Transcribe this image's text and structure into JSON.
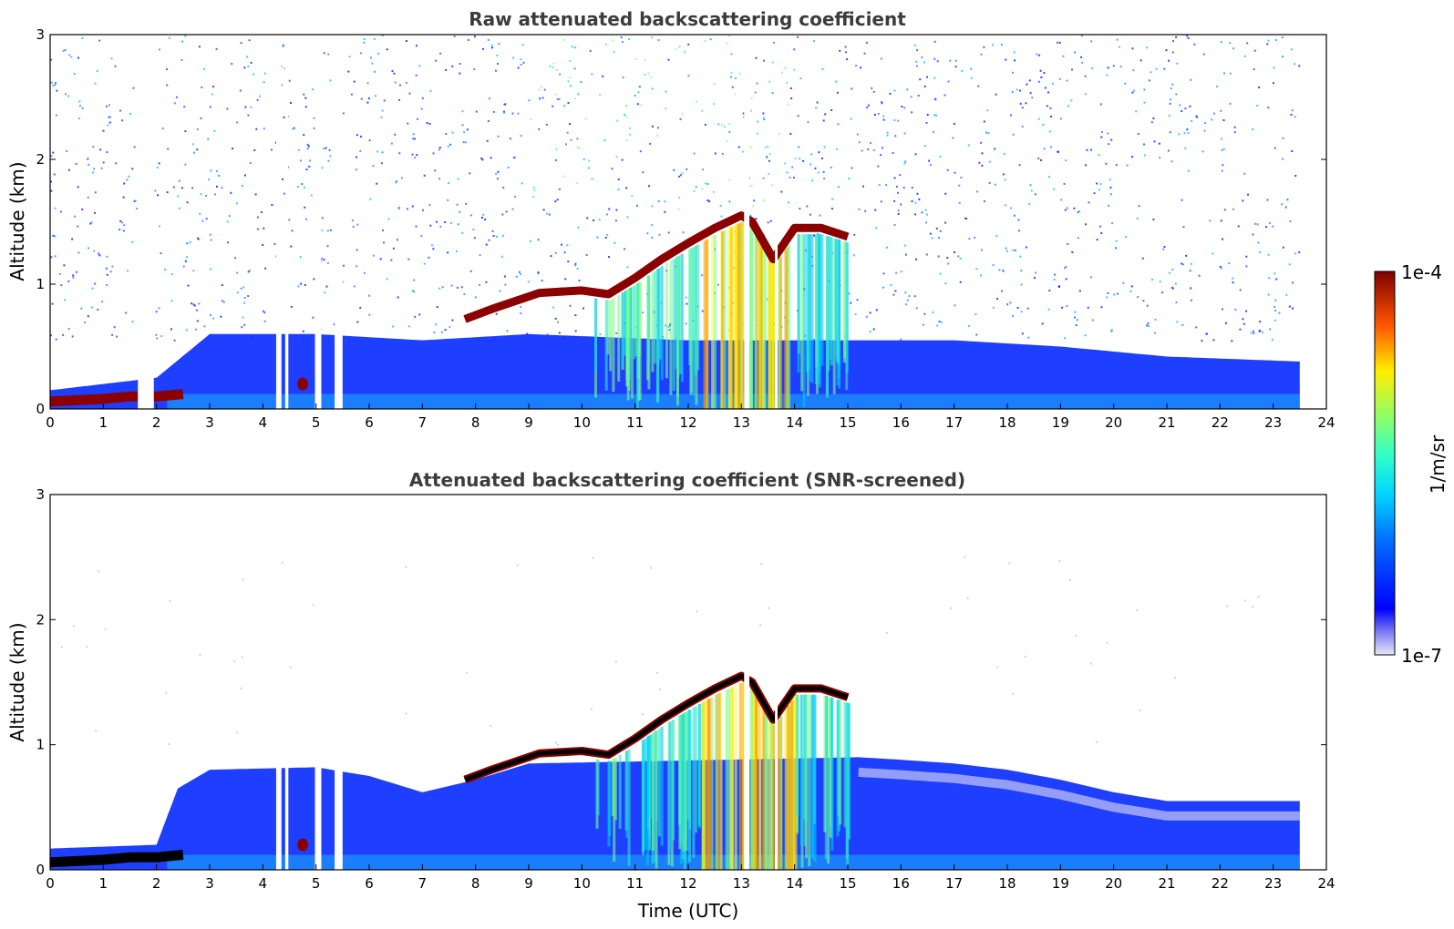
{
  "chart_data": [
    {
      "type": "heatmap",
      "title": "Raw attenuated backscattering coefficient",
      "xlabel": "",
      "ylabel": "Altitude (km)",
      "xlim": [
        0,
        24
      ],
      "ylim": [
        0,
        3
      ],
      "xticks": [
        "0",
        "1",
        "2",
        "3",
        "4",
        "5",
        "6",
        "7",
        "8",
        "9",
        "10",
        "11",
        "12",
        "13",
        "14",
        "15",
        "16",
        "17",
        "18",
        "19",
        "20",
        "21",
        "22",
        "23",
        "24"
      ],
      "yticks": [
        "0",
        "1",
        "2",
        "3"
      ],
      "data_extent_hours": 23.5,
      "screened": false,
      "features": {
        "cloud_layer_top_km": [
          [
            0.0,
            0.06
          ],
          [
            0.5,
            0.07
          ],
          [
            1.0,
            0.08
          ],
          [
            1.5,
            0.1
          ],
          [
            2.0,
            0.1
          ],
          [
            2.5,
            0.12
          ],
          [
            7.8,
            0.72
          ],
          [
            8.3,
            0.8
          ],
          [
            9.2,
            0.93
          ],
          [
            10.0,
            0.95
          ],
          [
            10.5,
            0.92
          ],
          [
            11.0,
            1.05
          ],
          [
            11.5,
            1.2
          ],
          [
            12.0,
            1.33
          ],
          [
            12.5,
            1.45
          ],
          [
            13.0,
            1.55
          ],
          [
            13.2,
            1.5
          ],
          [
            13.6,
            1.2
          ],
          [
            14.0,
            1.45
          ],
          [
            14.5,
            1.45
          ],
          [
            15.0,
            1.38
          ]
        ],
        "boundary_layer_top_km": [
          [
            0.0,
            0.15
          ],
          [
            2.0,
            0.25
          ],
          [
            3.0,
            0.6
          ],
          [
            5.0,
            0.6
          ],
          [
            7.0,
            0.55
          ],
          [
            9.0,
            0.6
          ],
          [
            12.0,
            0.55
          ],
          [
            15.0,
            0.55
          ],
          [
            17.0,
            0.55
          ],
          [
            19.0,
            0.5
          ],
          [
            21.0,
            0.42
          ],
          [
            23.5,
            0.38
          ]
        ],
        "data_gaps_hours": [
          [
            1.65,
            1.95
          ],
          [
            4.25,
            4.35
          ],
          [
            4.42,
            4.48
          ],
          [
            4.98,
            5.1
          ],
          [
            5.35,
            5.5
          ],
          [
            13.05,
            13.15
          ],
          [
            13.63,
            13.68
          ]
        ]
      }
    },
    {
      "type": "heatmap",
      "title": "Attenuated backscattering coefficient (SNR-screened)",
      "xlabel": "Time (UTC)",
      "ylabel": "Altitude (km)",
      "xlim": [
        0,
        24
      ],
      "ylim": [
        0,
        3
      ],
      "xticks": [
        "0",
        "1",
        "2",
        "3",
        "4",
        "5",
        "6",
        "7",
        "8",
        "9",
        "10",
        "11",
        "12",
        "13",
        "14",
        "15",
        "16",
        "17",
        "18",
        "19",
        "20",
        "21",
        "22",
        "23",
        "24"
      ],
      "yticks": [
        "0",
        "1",
        "2",
        "3"
      ],
      "data_extent_hours": 23.5,
      "screened": true,
      "features": {
        "cloud_layer_top_km": [
          [
            0.0,
            0.06
          ],
          [
            0.5,
            0.07
          ],
          [
            1.0,
            0.08
          ],
          [
            1.5,
            0.1
          ],
          [
            2.0,
            0.1
          ],
          [
            2.5,
            0.12
          ],
          [
            7.8,
            0.72
          ],
          [
            8.3,
            0.8
          ],
          [
            9.2,
            0.93
          ],
          [
            10.0,
            0.95
          ],
          [
            10.5,
            0.92
          ],
          [
            11.0,
            1.05
          ],
          [
            11.5,
            1.2
          ],
          [
            12.0,
            1.33
          ],
          [
            12.5,
            1.45
          ],
          [
            13.0,
            1.55
          ],
          [
            13.2,
            1.5
          ],
          [
            13.6,
            1.2
          ],
          [
            14.0,
            1.45
          ],
          [
            14.5,
            1.45
          ],
          [
            15.0,
            1.38
          ]
        ],
        "signal_top_km": [
          [
            0.0,
            0.17
          ],
          [
            2.0,
            0.2
          ],
          [
            2.4,
            0.65
          ],
          [
            3.0,
            0.8
          ],
          [
            5.0,
            0.82
          ],
          [
            6.0,
            0.75
          ],
          [
            7.0,
            0.62
          ],
          [
            8.0,
            0.72
          ],
          [
            9.0,
            0.85
          ],
          [
            15.2,
            0.9
          ],
          [
            16.0,
            0.88
          ],
          [
            17.0,
            0.85
          ],
          [
            18.0,
            0.8
          ],
          [
            19.0,
            0.72
          ],
          [
            20.0,
            0.62
          ],
          [
            21.0,
            0.55
          ],
          [
            22.0,
            0.55
          ],
          [
            23.5,
            0.55
          ]
        ],
        "data_gaps_hours": [
          [
            4.25,
            4.35
          ],
          [
            4.42,
            4.48
          ],
          [
            4.98,
            5.1
          ],
          [
            5.35,
            5.5
          ],
          [
            13.05,
            13.15
          ],
          [
            13.63,
            13.68
          ]
        ]
      }
    }
  ],
  "colorbar": {
    "label": "1/m/sr",
    "max_label": "1e-4",
    "min_label": "1e-7",
    "vmin": 1e-07,
    "vmax": 0.0001,
    "scale": "log",
    "colormap": "jet"
  },
  "colors": {
    "title": "#3c3c3c",
    "cloud": "#8b0000",
    "dense_cloud": "#000000"
  }
}
